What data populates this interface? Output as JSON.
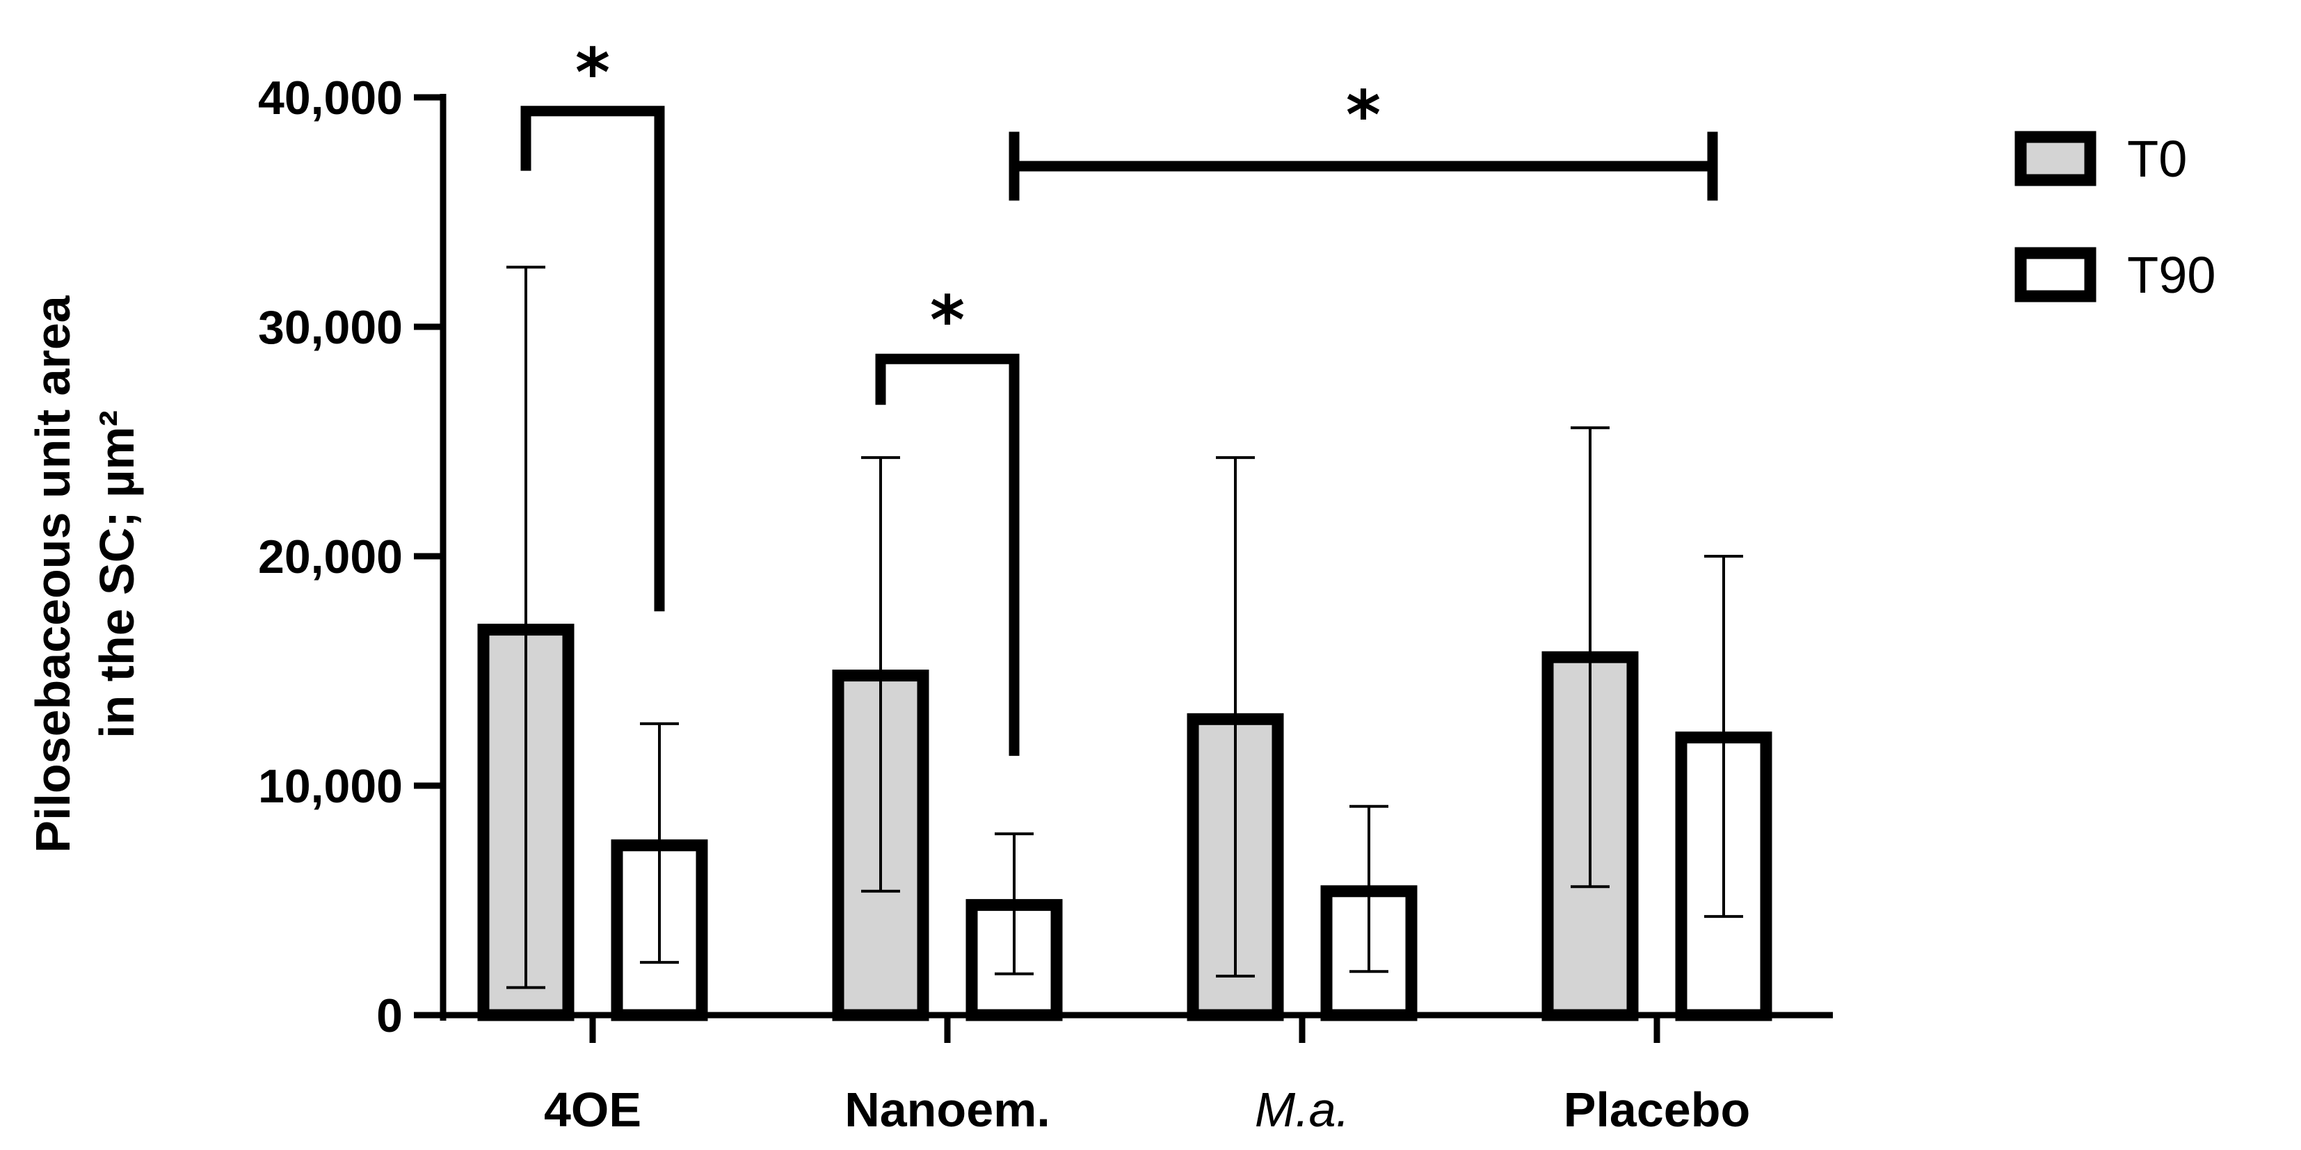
{
  "chart_data": {
    "type": "bar",
    "title": "",
    "xlabel": "",
    "ylabel_line1": "Pilosebaceous unit area",
    "ylabel_line2": "in the SC; µm²",
    "ylim": [
      0,
      40000
    ],
    "yticks": [
      0,
      10000,
      20000,
      30000,
      40000
    ],
    "ytick_labels": [
      "0",
      "10,000",
      "20,000",
      "30,000",
      "40,000"
    ],
    "categories": [
      "4OE",
      "Nanoem.",
      "M.a.",
      "Placebo"
    ],
    "category_italic": [
      false,
      false,
      true,
      false
    ],
    "series": [
      {
        "name": "T0",
        "fill": "#d4d4d4",
        "values": [
          16800,
          14800,
          12900,
          15600
        ],
        "err_upper": [
          32600,
          24300,
          24300,
          25600
        ],
        "err_lower": [
          1200,
          5400,
          1700,
          5600
        ]
      },
      {
        "name": "T90",
        "fill": "#ffffff",
        "values": [
          7400,
          4800,
          5400,
          12100
        ],
        "err_upper": [
          12700,
          7900,
          9100,
          20000
        ],
        "err_lower": [
          2300,
          1800,
          1900,
          4300
        ]
      }
    ],
    "significance": [
      {
        "label": "*",
        "type": "within",
        "category": 0,
        "left_y": 36800,
        "right_y": 17600,
        "top_y": 39400
      },
      {
        "label": "*",
        "type": "within",
        "category": 1,
        "left_y": 26600,
        "right_y": 11300,
        "top_y": 28600
      },
      {
        "label": "*",
        "type": "between",
        "from_category": 1,
        "to_category": 3,
        "y": 37000,
        "tick_extent": 1500
      }
    ],
    "legend_position": "top-right",
    "colors": {
      "axis": "#000000",
      "t0_fill": "#d4d4d4",
      "t90_fill": "#ffffff"
    }
  }
}
